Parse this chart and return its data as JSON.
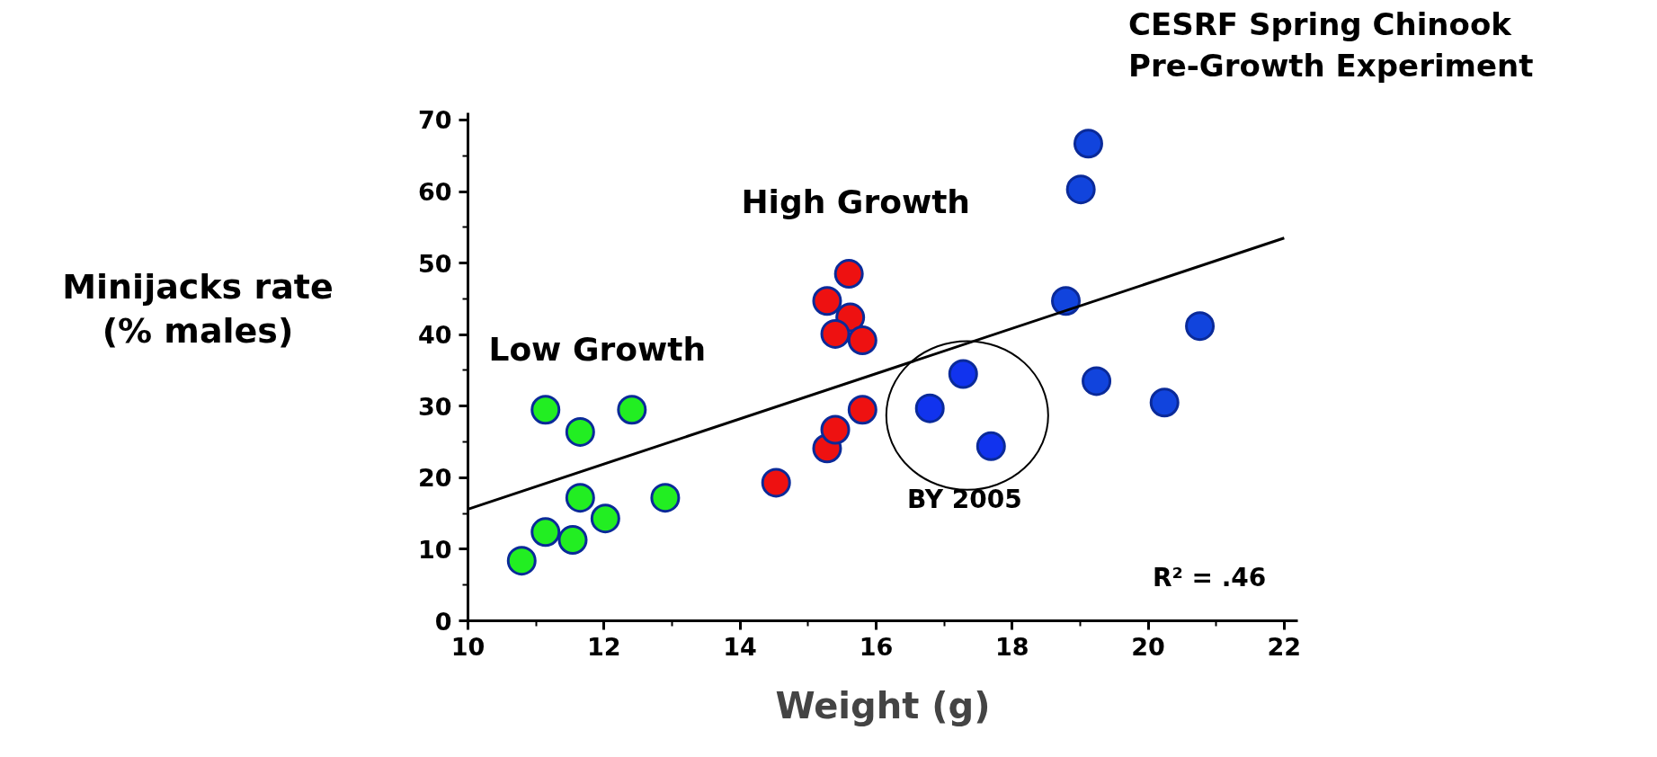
{
  "chart_data": {
    "type": "scatter",
    "title": "CESRF Spring Chinook",
    "subtitle": "Pre-Growth Experiment",
    "xlabel": "Weight (g)",
    "ylabel": "Minijacks rate\n(% males)",
    "xlim": [
      10,
      22.2
    ],
    "ylim": [
      0,
      71
    ],
    "xticks": [
      10,
      12,
      14,
      16,
      18,
      20,
      22
    ],
    "yticks": [
      0,
      10,
      20,
      30,
      40,
      50,
      60,
      70
    ],
    "grid": false,
    "marker": "circle",
    "series": [
      {
        "color": "#22ee22",
        "x": [
          10.79,
          11.14,
          11.54,
          12.02,
          11.65,
          12.9,
          11.14,
          11.65,
          12.41
        ],
        "values": [
          8.4,
          12.4,
          11.3,
          14.3,
          17.2,
          17.2,
          29.5,
          26.4,
          29.5
        ]
      },
      {
        "color": "#ee1111",
        "x": [
          14.53,
          15.28,
          15.4,
          15.8,
          15.28,
          15.6,
          15.62,
          15.4,
          15.8
        ],
        "values": [
          19.3,
          24.1,
          26.7,
          29.5,
          44.7,
          48.5,
          42.4,
          40.1,
          39.2
        ]
      },
      {
        "color": "#1144dd",
        "x": [
          19.12,
          19.01,
          18.79,
          19.24,
          20.24,
          20.76
        ],
        "values": [
          66.7,
          60.3,
          44.7,
          33.5,
          30.5,
          41.2
        ]
      },
      {
        "color": "#1133ee",
        "x": [
          16.79,
          17.28,
          17.69
        ],
        "values": [
          29.7,
          34.5,
          24.4
        ]
      },
      {
        "type": "line",
        "marker": "none",
        "color": "#000000",
        "x": [
          10,
          22
        ],
        "values": [
          15.6,
          53.5
        ]
      }
    ],
    "annotations": [
      "High Growth",
      "Low Growth",
      "BY 2005",
      "R² = .46"
    ]
  }
}
